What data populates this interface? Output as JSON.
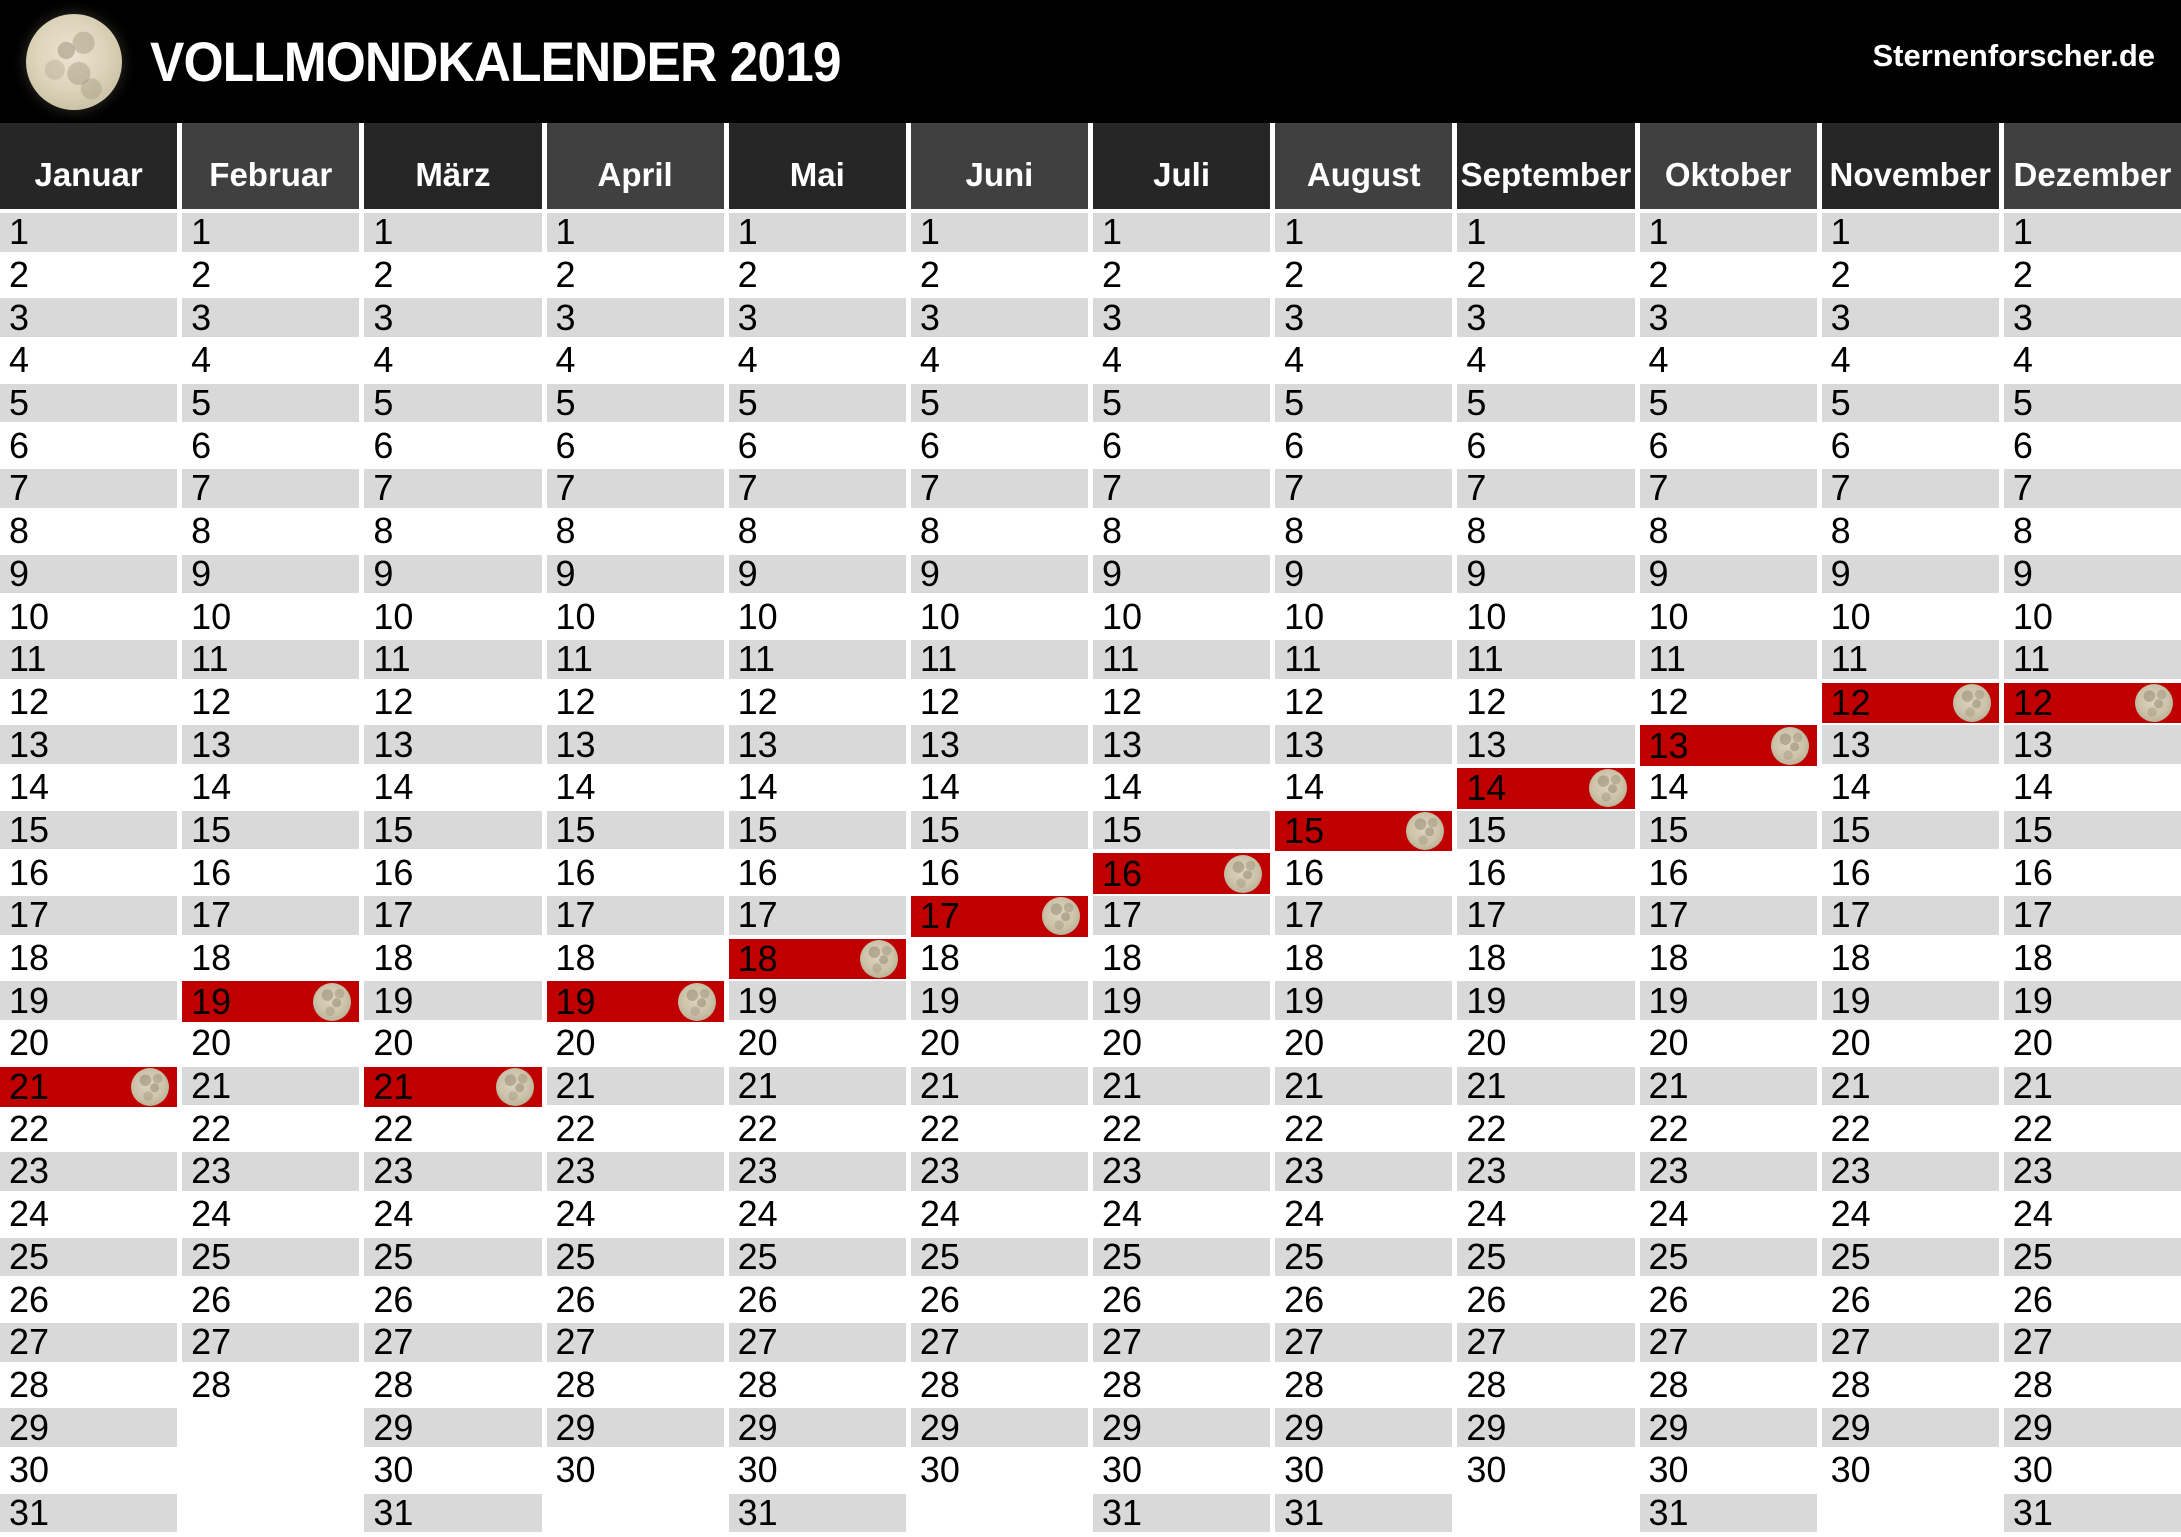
{
  "header": {
    "title": "VOLLMONDKALENDER 2019",
    "site": "Sternenforscher.de",
    "logo_icon": "full-moon-photo"
  },
  "calendar": {
    "year": 2019,
    "day_rows": 31,
    "months": [
      {
        "name": "Januar",
        "days": 31,
        "full_moon_day": 21
      },
      {
        "name": "Februar",
        "days": 28,
        "full_moon_day": 19
      },
      {
        "name": "März",
        "days": 31,
        "full_moon_day": 21
      },
      {
        "name": "April",
        "days": 30,
        "full_moon_day": 19
      },
      {
        "name": "Mai",
        "days": 31,
        "full_moon_day": 18
      },
      {
        "name": "Juni",
        "days": 30,
        "full_moon_day": 17
      },
      {
        "name": "Juli",
        "days": 31,
        "full_moon_day": 16
      },
      {
        "name": "August",
        "days": 31,
        "full_moon_day": 15
      },
      {
        "name": "September",
        "days": 30,
        "full_moon_day": 14
      },
      {
        "name": "Oktober",
        "days": 31,
        "full_moon_day": 13
      },
      {
        "name": "November",
        "days": 30,
        "full_moon_day": 12
      },
      {
        "name": "Dezember",
        "days": 31,
        "full_moon_day": 12
      }
    ],
    "full_moon_icon": "full-moon",
    "colors": {
      "full_moon_highlight": "#c00000",
      "row_stripe": "#d9d9d9",
      "month_header_dark": "#262626",
      "month_header_light": "#404040",
      "header_background": "#000000"
    }
  }
}
